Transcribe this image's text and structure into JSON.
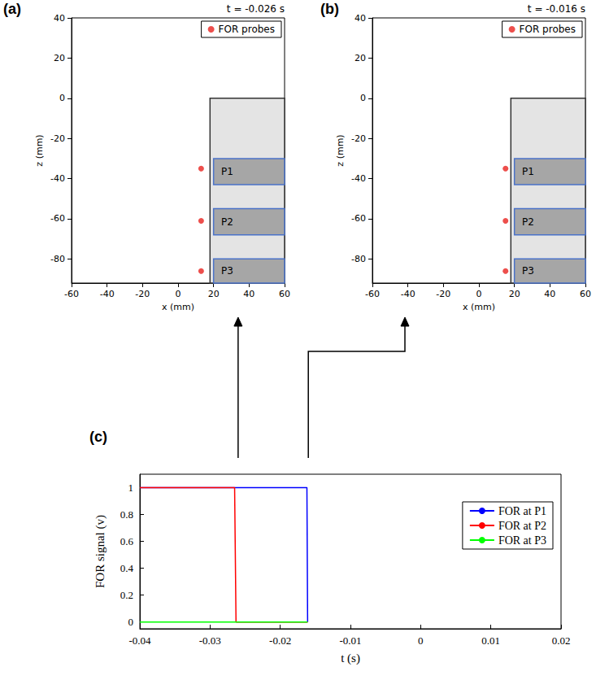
{
  "chart_data": [
    {
      "type": "scatter",
      "panel_label": "(a)",
      "title": "t = -0.026 s",
      "time": -0.026,
      "xlabel": "x (mm)",
      "ylabel": "z (mm)",
      "xlim": [
        -60,
        60
      ],
      "xticks": [
        -60,
        -40,
        -20,
        0,
        20,
        40,
        60
      ],
      "ylim": [
        -92,
        40
      ],
      "yticks": [
        -80,
        -60,
        -40,
        -20,
        0,
        20,
        40
      ],
      "grid": false,
      "legend": "upper right",
      "wall": {
        "x": [
          18,
          60
        ],
        "z": [
          -92,
          0
        ]
      },
      "regions": [
        {
          "label": "P1",
          "x": [
            20,
            60
          ],
          "z": [
            -43,
            -30
          ]
        },
        {
          "label": "P2",
          "x": [
            20,
            60
          ],
          "z": [
            -68,
            -55
          ]
        },
        {
          "label": "P3",
          "x": [
            20,
            60
          ],
          "z": [
            -92,
            -80
          ]
        }
      ],
      "series": [
        {
          "name": "FOR probes",
          "color": "#e8231f",
          "marker": "circle",
          "x": [
            13,
            13,
            13
          ],
          "values": [
            -35,
            -61,
            -86
          ]
        }
      ]
    },
    {
      "type": "scatter",
      "panel_label": "(b)",
      "title": "t = -0.016 s",
      "time": -0.016,
      "xlabel": "x (mm)",
      "ylabel": "z (mm)",
      "xlim": [
        -60,
        60
      ],
      "xticks": [
        -60,
        -40,
        -20,
        0,
        20,
        40,
        60
      ],
      "ylim": [
        -92,
        40
      ],
      "yticks": [
        -80,
        -60,
        -40,
        -20,
        0,
        20,
        40
      ],
      "grid": false,
      "legend": "upper right",
      "wall": {
        "x": [
          18,
          60
        ],
        "z": [
          -92,
          0
        ]
      },
      "regions": [
        {
          "label": "P1",
          "x": [
            20,
            60
          ],
          "z": [
            -43,
            -30
          ]
        },
        {
          "label": "P2",
          "x": [
            20,
            60
          ],
          "z": [
            -68,
            -55
          ]
        },
        {
          "label": "P3",
          "x": [
            20,
            60
          ],
          "z": [
            -92,
            -80
          ]
        }
      ],
      "series": [
        {
          "name": "FOR probes",
          "color": "#e8231f",
          "marker": "circle",
          "x": [
            15,
            15,
            15
          ],
          "values": [
            -35,
            -61,
            -86
          ]
        }
      ]
    },
    {
      "type": "line",
      "panel_label": "(c)",
      "xlabel": "t (s)",
      "ylabel": "FOR signal (v)",
      "xlim": [
        -0.04,
        0.02
      ],
      "xticks": [
        -0.04,
        -0.03,
        -0.02,
        -0.01,
        0,
        0.01,
        0.02
      ],
      "ylim": [
        -0.05,
        1.1
      ],
      "yticks": [
        0,
        0.2,
        0.4,
        0.6,
        0.8,
        1
      ],
      "grid": false,
      "legend": "upper right",
      "series": [
        {
          "name": "FOR at P1",
          "color": "#0000ff",
          "x": [
            -0.04,
            -0.0162,
            -0.0161
          ],
          "values": [
            1,
            1,
            0
          ]
        },
        {
          "name": "FOR at P2",
          "color": "#ff0000",
          "x": [
            -0.04,
            -0.0265,
            -0.0263,
            -0.0161
          ],
          "values": [
            1,
            1,
            0,
            0
          ]
        },
        {
          "name": "FOR at P3",
          "color": "#00ff00",
          "x": [
            -0.04,
            -0.0161
          ],
          "values": [
            0,
            0
          ]
        }
      ]
    }
  ]
}
